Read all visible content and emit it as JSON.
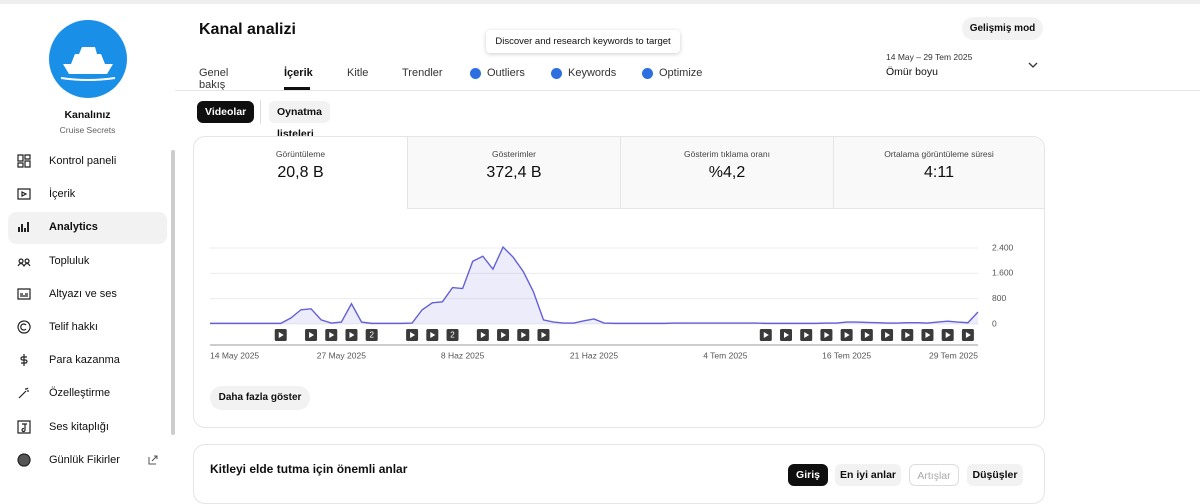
{
  "sidebar": {
    "channel_label": "Kanalınız",
    "channel_name": "Cruise Secrets",
    "nav": [
      "Kontrol paneli",
      "İçerik",
      "Analytics",
      "Topluluk",
      "Altyazı ve ses",
      "Telif hakkı",
      "Para kazanma",
      "Özelleştirme",
      "Ses kitaplığı",
      "Günlük Fikirler"
    ],
    "selected": "Analytics"
  },
  "header": {
    "title": "Kanal analizi",
    "advanced_button": "Gelişmiş mod",
    "tooltip": "Discover and research keywords to target",
    "date_range": "14 May – 29 Tem 2025",
    "period": "Ömür boyu"
  },
  "tabs": [
    "Genel bakış",
    "İçerik",
    "Kitle",
    "Trendler",
    "Outliers",
    "Keywords",
    "Optimize"
  ],
  "selected_tab": "İçerik",
  "filters": [
    "Videolar",
    "Oynatma listeleri"
  ],
  "selected_filter": "Videolar",
  "metrics": [
    {
      "label": "Görüntüleme",
      "value": "20,8 B"
    },
    {
      "label": "Gösterimler",
      "value": "372,4 B"
    },
    {
      "label": "Gösterim tıklama oranı",
      "value": "%4,2"
    },
    {
      "label": "Ortalama görüntüleme süresi",
      "value": "4:11"
    }
  ],
  "chart_data": {
    "type": "line",
    "color": "#6360d8",
    "categories": [
      "14 May 2025",
      null,
      null,
      null,
      null,
      null,
      null,
      null,
      null,
      null,
      null,
      null,
      null,
      "27 May 2025",
      null,
      null,
      null,
      null,
      null,
      null,
      null,
      null,
      null,
      null,
      null,
      "8 Haz 2025",
      null,
      null,
      null,
      null,
      null,
      null,
      null,
      null,
      null,
      null,
      null,
      null,
      "21 Haz 2025",
      null,
      null,
      null,
      null,
      null,
      null,
      null,
      null,
      null,
      null,
      null,
      null,
      "4 Tem 2025",
      null,
      null,
      null,
      null,
      null,
      null,
      null,
      null,
      null,
      null,
      null,
      "16 Tem 2025",
      null,
      null,
      null,
      null,
      null,
      null,
      null,
      null,
      null,
      null,
      null,
      null,
      "29 Tem 2025"
    ],
    "values": [
      20,
      20,
      20,
      20,
      20,
      20,
      20,
      20,
      190,
      450,
      480,
      130,
      30,
      60,
      640,
      60,
      20,
      20,
      20,
      20,
      30,
      450,
      670,
      700,
      1150,
      1120,
      1980,
      2140,
      1730,
      2430,
      2110,
      1660,
      1020,
      130,
      60,
      30,
      30,
      100,
      160,
      30,
      20,
      20,
      20,
      20,
      20,
      20,
      30,
      30,
      30,
      30,
      30,
      30,
      30,
      30,
      30,
      20,
      20,
      20,
      20,
      20,
      20,
      30,
      30,
      60,
      60,
      50,
      40,
      30,
      30,
      40,
      40,
      30,
      60,
      90,
      60,
      40,
      380
    ],
    "ylim": [
      0,
      2700
    ],
    "yticks": [
      0,
      800,
      {
        "value": 1600,
        "label": "1.600"
      },
      {
        "value": 2400,
        "label": "2.400"
      }
    ],
    "grid": true,
    "video_markers": [
      7,
      10,
      12,
      14,
      16,
      20,
      22,
      24,
      27,
      29,
      31,
      33,
      55,
      57,
      59,
      61,
      63,
      65,
      67,
      69,
      71,
      73,
      75
    ],
    "video_marker_labels": [
      null,
      null,
      null,
      null,
      "2",
      null,
      null,
      "2",
      null,
      null,
      null,
      null,
      null,
      null,
      null,
      null,
      null,
      null,
      null,
      null,
      null,
      null,
      null
    ]
  },
  "show_more": "Daha fazla göster",
  "moments": {
    "title": "Kitleyi elde tutma için önemli anlar",
    "buttons": [
      "Giriş",
      "En iyi anlar",
      "Artışlar",
      "Düşüşler"
    ],
    "selected": "Giriş",
    "disabled": "Artışlar"
  }
}
